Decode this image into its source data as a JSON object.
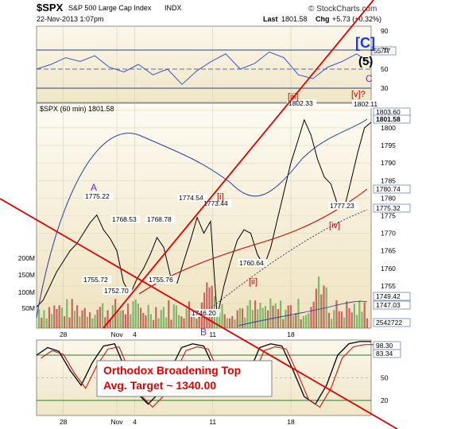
{
  "header": {
    "symbol": "$SPX",
    "name": "S&P 500 Large Cap Index",
    "exchange": "INDX",
    "datetime": "22-Nov-2013 1:07pm",
    "last_label": "Last",
    "last_value": "1801.58",
    "chg_label": "Chg",
    "chg_value": "+5.73 (+0.32%)",
    "copyright": "© StockCharts.com"
  },
  "price_panel": {
    "legend": "$SPX (60 min) 1801.58"
  },
  "annotation_box": {
    "line1": "Orthodox Broadening Top",
    "line2": "Avg. Target ~ 1340.00"
  },
  "chart_data": [
    {
      "type": "line",
      "panel": "RSI (top indicator)",
      "y_ticks": [
        30,
        50,
        70,
        90
      ],
      "ylim": [
        15,
        95
      ],
      "levels": [
        30,
        70
      ],
      "right_label": "55.77",
      "x": [
        0,
        6,
        12,
        18,
        24,
        30,
        36,
        42,
        48,
        54,
        60,
        66,
        72,
        78,
        84,
        90,
        96,
        102,
        108,
        114,
        120,
        126,
        132,
        138
      ],
      "values": [
        50,
        55,
        62,
        58,
        64,
        52,
        47,
        55,
        44,
        50,
        34,
        48,
        58,
        66,
        50,
        56,
        68,
        62,
        44,
        40,
        52,
        58,
        66,
        56
      ],
      "color": "#3a56c8"
    },
    {
      "type": "line",
      "panel": "price",
      "symbol": "$SPX",
      "timeframe": "60 min",
      "y_ticks": [
        1750,
        1755,
        1760,
        1765,
        1770,
        1775,
        1780,
        1785,
        1790,
        1795,
        1800,
        1805
      ],
      "ylim": [
        1743,
        1807
      ],
      "x_ticks": [
        {
          "label": "28",
          "x": 12
        },
        {
          "label": "Nov",
          "x": 36
        },
        {
          "label": "4",
          "x": 44
        },
        {
          "label": "11",
          "x": 79
        },
        {
          "label": "18",
          "x": 114
        }
      ],
      "xlim": [
        0,
        150
      ],
      "series": [
        {
          "name": "$SPX (60 min)",
          "x": [
            0,
            3,
            6,
            9,
            12,
            15,
            18,
            21,
            24,
            27,
            30,
            33,
            36,
            39,
            42,
            45,
            48,
            51,
            54,
            57,
            60,
            63,
            66,
            69,
            72,
            75,
            78,
            81,
            84,
            87,
            90,
            93,
            96,
            99,
            102,
            105,
            108,
            111,
            114,
            117,
            120,
            123,
            126,
            129,
            132,
            135,
            138,
            141,
            144,
            147,
            150
          ],
          "values": [
            1749,
            1751,
            1755,
            1759,
            1762,
            1765,
            1767,
            1770,
            1773,
            1775.2,
            1771,
            1768.5,
            1765,
            1756,
            1752.7,
            1757,
            1760,
            1764,
            1768.8,
            1766,
            1758,
            1755.8,
            1762,
            1768,
            1774.5,
            1770,
            1773.4,
            1746.2,
            1755,
            1762,
            1768,
            1771,
            1770,
            1764,
            1760.6,
            1766,
            1774,
            1782,
            1790,
            1796,
            1802.3,
            1798,
            1791,
            1786,
            1784,
            1778,
            1777.2,
            1785,
            1793,
            1800,
            1801.6
          ],
          "color": "#000000"
        },
        {
          "name": "MA (blue)",
          "right_label": "1803.60",
          "color": "#2a3f9a"
        },
        {
          "name": "MA (red)",
          "right_label": "1780.74",
          "color": "#cc0000"
        },
        {
          "name": "MA (dotted)",
          "right_label": "1775.32",
          "color": "#2a2a5a"
        }
      ],
      "price_labels": [
        "1775.22",
        "1768.53",
        "1768.78",
        "1774.54",
        "1773.44",
        "1755.72",
        "1752.70",
        "1755.76",
        "1760.64",
        "1746.20",
        "1802.33",
        "1802.11",
        "1777.23"
      ],
      "right_axis_labels": [
        "1801.58",
        "1749.42",
        "1747.03",
        "2542722"
      ],
      "volume_ticks": [
        "50M",
        "100M",
        "150M",
        "200M"
      ],
      "wave_labels": [
        {
          "text": "A",
          "color": "#7a1fd0"
        },
        {
          "text": "B",
          "color": "#7a1fd0"
        },
        {
          "text": "[i]",
          "color": "#cc0000"
        },
        {
          "text": "[ii]",
          "color": "#cc0000"
        },
        {
          "text": "[iii]",
          "color": "#cc0000"
        },
        {
          "text": "[iv]",
          "color": "#cc0000"
        },
        {
          "text": "[v]?",
          "color": "#cc0000"
        },
        {
          "text": "[C]",
          "color": "#1a3bd8"
        },
        {
          "text": "(5)",
          "color": "#000000"
        },
        {
          "text": "C",
          "color": "#7a1fd0"
        }
      ]
    },
    {
      "type": "line",
      "panel": "Stochastic (bottom indicator)",
      "y_ticks": [
        20,
        50,
        80
      ],
      "right_labels": [
        "98.30",
        "83.34"
      ],
      "x": [
        0,
        5,
        10,
        15,
        20,
        25,
        30,
        35,
        40,
        45,
        50,
        55,
        60,
        65,
        70,
        75,
        80,
        85,
        90,
        95,
        100,
        105,
        110,
        115,
        120,
        125,
        130,
        135,
        140,
        145,
        150
      ],
      "values": [
        80,
        90,
        85,
        60,
        40,
        70,
        92,
        95,
        60,
        30,
        15,
        30,
        60,
        90,
        95,
        92,
        60,
        35,
        30,
        55,
        90,
        95,
        92,
        60,
        25,
        15,
        40,
        80,
        95,
        98,
        98
      ],
      "color": "#000000"
    }
  ]
}
